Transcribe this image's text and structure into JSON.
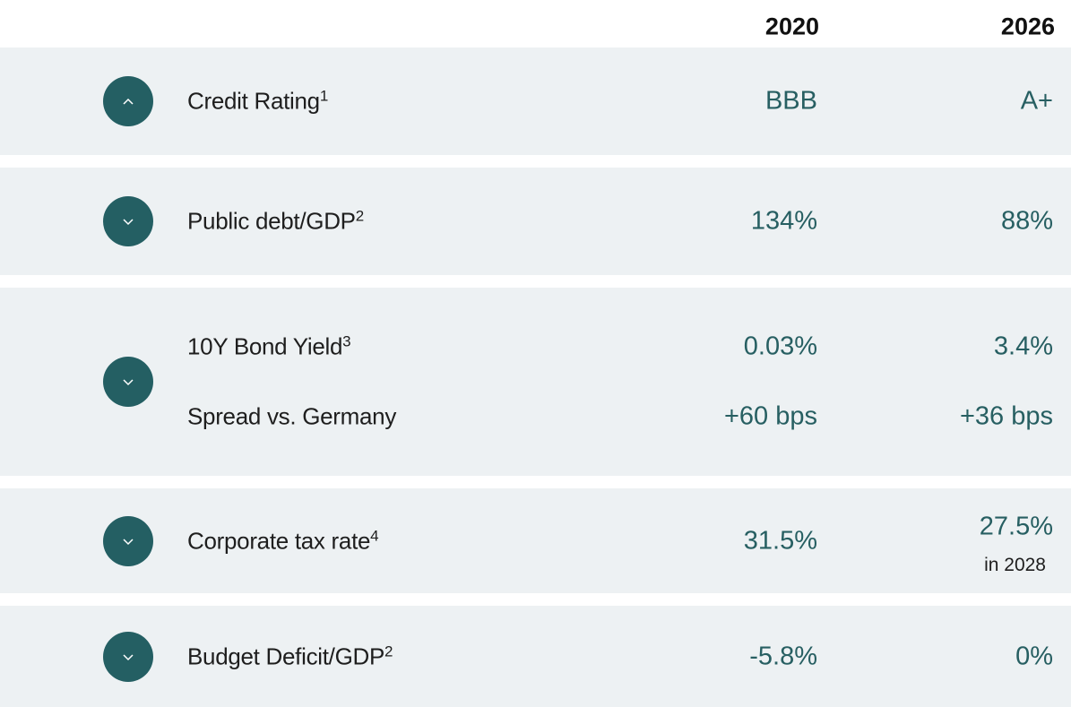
{
  "header": {
    "years": [
      "2020",
      "2026"
    ]
  },
  "rows": [
    {
      "items": [
        {
          "label": "Credit Rating",
          "sup": "1",
          "values": [
            "BBB",
            "A+"
          ]
        }
      ]
    },
    {
      "items": [
        {
          "label": "Public debt/GDP",
          "sup": "2",
          "values": [
            "134%",
            "88%"
          ]
        }
      ]
    },
    {
      "items": [
        {
          "label": "10Y Bond Yield",
          "sup": "3",
          "values": [
            "0.03%",
            "3.4%"
          ]
        },
        {
          "label": "Spread vs. Germany",
          "values": [
            "+60 bps",
            "+36 bps"
          ]
        }
      ]
    },
    {
      "items": [
        {
          "label": "Corporate tax rate",
          "sup": "4",
          "values": [
            "31.5%",
            "27.5%"
          ],
          "note": "in 2028"
        }
      ]
    },
    {
      "items": [
        {
          "label": "Budget Deficit/GDP",
          "sup": "2",
          "values": [
            "-5.8%",
            "0%"
          ]
        }
      ]
    }
  ]
}
